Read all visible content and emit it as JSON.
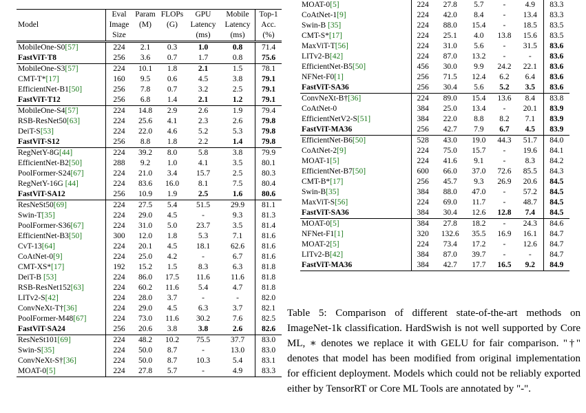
{
  "left_table": {
    "headers": [
      "Model",
      "Eval Image Size",
      "Param (M)",
      "FLOPs (G)",
      "GPU Latency (ms)",
      "Mobile Latency (ms)",
      "Top-1 Acc. (%)"
    ],
    "groups": [
      [
        [
          "MobileOne-S0[57]",
          "224",
          "2.1",
          "0.3",
          "1.0",
          "0.8",
          "71.4"
        ],
        [
          "FastViT-T8",
          "256",
          "3.6",
          "0.7",
          "1.7",
          "0.8",
          "75.6"
        ]
      ],
      [
        [
          "MobileOne-S3[57]",
          "224",
          "10.1",
          "1.8",
          "2.1",
          "1.5",
          "78.1"
        ],
        [
          "CMT-T*[17]",
          "160",
          "9.5",
          "0.6",
          "4.5",
          "3.8",
          "79.1"
        ],
        [
          "EfficientNet-B1[50]",
          "256",
          "7.8",
          "0.7",
          "3.2",
          "2.5",
          "79.1"
        ],
        [
          "FastViT-T12",
          "256",
          "6.8",
          "1.4",
          "2.1",
          "1.2",
          "79.1"
        ]
      ],
      [
        [
          "MobileOne-S4[57]",
          "224",
          "14.8",
          "2.9",
          "2.6",
          "1.9",
          "79.4"
        ],
        [
          "RSB-ResNet50[63]",
          "224",
          "25.6",
          "4.1",
          "2.3",
          "2.6",
          "79.8"
        ],
        [
          "DeiT-S[53]",
          "224",
          "22.0",
          "4.6",
          "5.2",
          "5.3",
          "79.8"
        ],
        [
          "FastViT-S12",
          "256",
          "8.8",
          "1.8",
          "2.2",
          "1.4",
          "79.8"
        ]
      ],
      [
        [
          "RegNetY-8G[44]",
          "224",
          "39.2",
          "8.0",
          "5.8",
          "3.8",
          "79.9"
        ],
        [
          "EfficientNet-B2[50]",
          "288",
          "9.2",
          "1.0",
          "4.1",
          "3.5",
          "80.1"
        ],
        [
          "PoolFormer-S24[67]",
          "224",
          "21.0",
          "3.4",
          "15.7",
          "2.5",
          "80.3"
        ],
        [
          "RegNetY-16G [44]",
          "224",
          "83.6",
          "16.0",
          "8.1",
          "7.5",
          "80.4"
        ],
        [
          "FastViT-SA12",
          "256",
          "10.9",
          "1.9",
          "2.5",
          "1.6",
          "80.6"
        ]
      ],
      [
        [
          "ResNeSt50[69]",
          "224",
          "27.5",
          "5.4",
          "51.5",
          "29.9",
          "81.1"
        ],
        [
          "Swin-T[35]",
          "224",
          "29.0",
          "4.5",
          "-",
          "9.3",
          "81.3"
        ],
        [
          "PoolFormer-S36[67]",
          "224",
          "31.0",
          "5.0",
          "23.7",
          "3.5",
          "81.4"
        ],
        [
          "EfficientNet-B3[50]",
          "300",
          "12.0",
          "1.8",
          "5.3",
          "7.1",
          "81.6"
        ],
        [
          "CvT-13[64]",
          "224",
          "20.1",
          "4.5",
          "18.1",
          "62.6",
          "81.6"
        ],
        [
          "CoAtNet-0[9]",
          "224",
          "25.0",
          "4.2",
          "-",
          "6.7",
          "81.6"
        ],
        [
          "CMT-XS*[17]",
          "192",
          "15.2",
          "1.5",
          "8.3",
          "6.3",
          "81.8"
        ],
        [
          "DeiT-B [53]",
          "224",
          "86.0",
          "17.5",
          "11.6",
          "11.6",
          "81.8"
        ],
        [
          "RSB-ResNet152[63]",
          "224",
          "60.2",
          "11.6",
          "5.4",
          "4.7",
          "81.8"
        ],
        [
          "LITv2-S[42]",
          "224",
          "28.0",
          "3.7",
          "-",
          "-",
          "82.0"
        ],
        [
          "ConvNeXt-T†[36]",
          "224",
          "29.0",
          "4.5",
          "6.3",
          "3.7",
          "82.1"
        ],
        [
          "PoolFormer-M48[67]",
          "224",
          "73.0",
          "11.6",
          "30.2",
          "7.6",
          "82.5"
        ],
        [
          "FastViT-SA24",
          "256",
          "20.6",
          "3.8",
          "3.8",
          "2.6",
          "82.6"
        ]
      ],
      [
        [
          "ResNeSt101[69]",
          "224",
          "48.2",
          "10.2",
          "75.5",
          "37.7",
          "83.0"
        ],
        [
          "Swin-S[35]",
          "224",
          "50.0",
          "8.7",
          "-",
          "13.0",
          "83.0"
        ],
        [
          "ConvNeXt-S†[36]",
          "224",
          "50.0",
          "8.7",
          "10.3",
          "5.4",
          "83.1"
        ],
        [
          "MOAT-0[5]",
          "224",
          "27.8",
          "5.7",
          "-",
          "4.9",
          "83.3"
        ]
      ]
    ]
  },
  "right_table": {
    "groups": [
      [
        [
          "MOAT-0[5]",
          "224",
          "27.8",
          "5.7",
          "-",
          "4.9",
          "83.3"
        ],
        [
          "CoAtNet-1[9]",
          "224",
          "42.0",
          "8.4",
          "-",
          "13.4",
          "83.3"
        ],
        [
          "Swin-B [35]",
          "224",
          "88.0",
          "15.4",
          "-",
          "18.5",
          "83.5"
        ],
        [
          "CMT-S*[17]",
          "224",
          "25.1",
          "4.0",
          "13.8",
          "15.6",
          "83.5"
        ],
        [
          "MaxViT-T[56]",
          "224",
          "31.0",
          "5.6",
          "-",
          "31.5",
          "83.6"
        ],
        [
          "LITv2-B[42]",
          "224",
          "87.0",
          "13.2",
          "-",
          "-",
          "83.6"
        ],
        [
          "EfficientNet-B5[50]",
          "456",
          "30.0",
          "9.9",
          "24.2",
          "22.1",
          "83.6"
        ],
        [
          "NFNet-F0[1]",
          "256",
          "71.5",
          "12.4",
          "6.2",
          "6.4",
          "83.6"
        ],
        [
          "FastViT-SA36",
          "256",
          "30.4",
          "5.6",
          "5.2",
          "3.5",
          "83.6"
        ]
      ],
      [
        [
          "ConvNeXt-B†[36]",
          "224",
          "89.0",
          "15.4",
          "13.6",
          "8.4",
          "83.8"
        ],
        [
          "CoAtNet-0",
          "384",
          "25.0",
          "13.4",
          "-",
          "20.1",
          "83.9"
        ],
        [
          "EfficientNetV2-S[51]",
          "384",
          "22.0",
          "8.8",
          "8.2",
          "7.1",
          "83.9"
        ],
        [
          "FastViT-MA36",
          "256",
          "42.7",
          "7.9",
          "6.7",
          "4.5",
          "83.9"
        ]
      ],
      [
        [
          "EfficientNet-B6[50]",
          "528",
          "43.0",
          "19.0",
          "44.3",
          "51.7",
          "84.0"
        ],
        [
          "CoAtNet-2[9]",
          "224",
          "75.0",
          "15.7",
          "-",
          "19.6",
          "84.1"
        ],
        [
          "MOAT-1[5]",
          "224",
          "41.6",
          "9.1",
          "-",
          "8.3",
          "84.2"
        ],
        [
          "EfficientNet-B7[50]",
          "600",
          "66.0",
          "37.0",
          "72.6",
          "85.5",
          "84.3"
        ],
        [
          "CMT-B*[17]",
          "256",
          "45.7",
          "9.3",
          "26.9",
          "20.6",
          "84.5"
        ],
        [
          "Swin-B[35]",
          "384",
          "88.0",
          "47.0",
          "-",
          "57.2",
          "84.5"
        ],
        [
          "MaxViT-S[56]",
          "224",
          "69.0",
          "11.7",
          "-",
          "48.7",
          "84.5"
        ],
        [
          "FastViT-SA36",
          "384",
          "30.4",
          "12.6",
          "12.8",
          "7.4",
          "84.5"
        ]
      ],
      [
        [
          "MOAT-0[5]",
          "384",
          "27.8",
          "18.2",
          "-",
          "24.3",
          "84.6"
        ],
        [
          "NFNet-F1[1]",
          "320",
          "132.6",
          "35.5",
          "16.9",
          "16.1",
          "84.7"
        ],
        [
          "MOAT-2[5]",
          "224",
          "73.4",
          "17.2",
          "-",
          "12.6",
          "84.7"
        ],
        [
          "LITv2-B[42]",
          "384",
          "87.0",
          "39.7",
          "-",
          "-",
          "84.7"
        ],
        [
          "FastViT-MA36",
          "384",
          "42.7",
          "17.7",
          "16.5",
          "9.2",
          "84.9"
        ]
      ]
    ]
  },
  "caption": "Table 5: Comparison of different state-of-the-art methods on ImageNet-1k classification. HardSwish is not well supported by Core ML, ∗ denotes we replace it with GELU for fair comparison. \"†\" denotes that model has been modified from original implementation for efficient deployment. Models which could not be reliably exported either by TensorRT or Core ML Tools are annotated by \"-\".",
  "bold_cells": {
    "left": [
      [
        0,
        0,
        4
      ],
      [
        0,
        0,
        5
      ],
      [
        0,
        1,
        0
      ],
      [
        0,
        1,
        6
      ],
      [
        1,
        0,
        4
      ],
      [
        1,
        1,
        6
      ],
      [
        1,
        2,
        6
      ],
      [
        1,
        3,
        0
      ],
      [
        1,
        3,
        4
      ],
      [
        1,
        3,
        5
      ],
      [
        1,
        3,
        6
      ],
      [
        2,
        1,
        6
      ],
      [
        2,
        2,
        6
      ],
      [
        2,
        3,
        0
      ],
      [
        2,
        3,
        5
      ],
      [
        2,
        3,
        6
      ],
      [
        3,
        4,
        0
      ],
      [
        3,
        4,
        4
      ],
      [
        3,
        4,
        5
      ],
      [
        3,
        4,
        6
      ],
      [
        4,
        12,
        0
      ],
      [
        4,
        12,
        4
      ],
      [
        4,
        12,
        5
      ],
      [
        4,
        12,
        6
      ]
    ],
    "right": [
      [
        0,
        4,
        6
      ],
      [
        0,
        5,
        6
      ],
      [
        0,
        6,
        6
      ],
      [
        0,
        7,
        6
      ],
      [
        0,
        8,
        0
      ],
      [
        0,
        8,
        4
      ],
      [
        0,
        8,
        5
      ],
      [
        0,
        8,
        6
      ],
      [
        1,
        1,
        6
      ],
      [
        1,
        2,
        6
      ],
      [
        1,
        3,
        0
      ],
      [
        1,
        3,
        4
      ],
      [
        1,
        3,
        5
      ],
      [
        1,
        3,
        6
      ],
      [
        2,
        4,
        6
      ],
      [
        2,
        5,
        6
      ],
      [
        2,
        6,
        6
      ],
      [
        2,
        7,
        0
      ],
      [
        2,
        7,
        4
      ],
      [
        2,
        7,
        5
      ],
      [
        2,
        7,
        6
      ],
      [
        3,
        4,
        0
      ],
      [
        3,
        4,
        4
      ],
      [
        3,
        4,
        5
      ],
      [
        3,
        4,
        6
      ]
    ]
  }
}
